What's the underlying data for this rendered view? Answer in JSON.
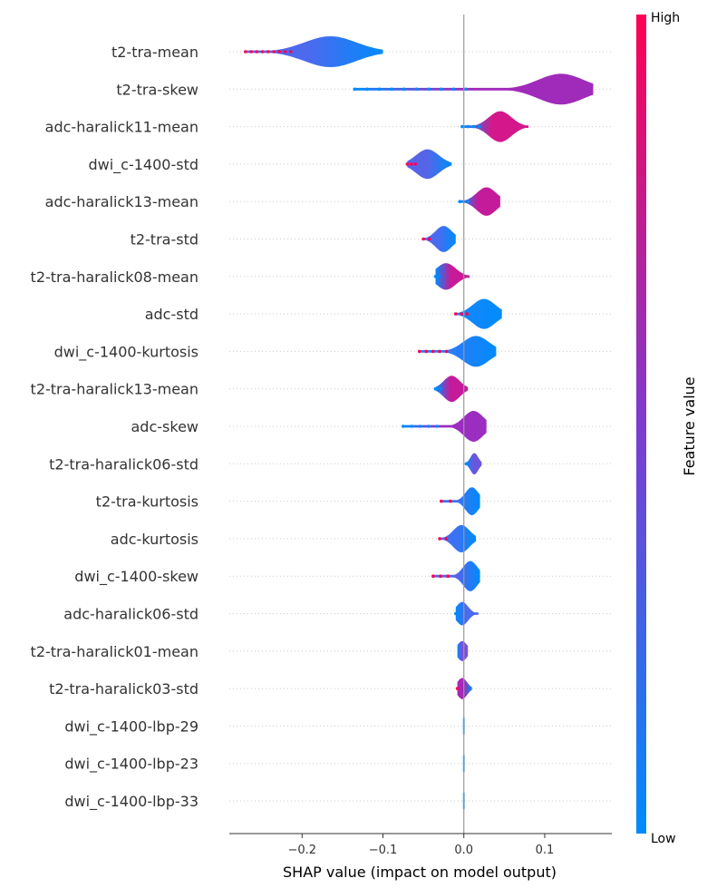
{
  "chart_data": {
    "type": "violin",
    "title": "",
    "xlabel": "SHAP value (impact on model output)",
    "ylabel": "",
    "xlim": [
      -0.29,
      0.183
    ],
    "xticks": [
      -0.2,
      -0.1,
      0.0,
      0.1
    ],
    "xtick_labels": [
      "−0.2",
      "−0.1",
      "0.0",
      "0.1"
    ],
    "colorbar": {
      "title": "Feature value",
      "high_label": "High",
      "low_label": "Low",
      "low_color": "#008bfb",
      "mid_color": "#7e3bcf",
      "high_color": "#ff0052"
    },
    "features": [
      {
        "name": "t2-tra-mean",
        "min": -0.27,
        "max": -0.1,
        "center": -0.165,
        "width": 0.08,
        "color": "#4d69ee",
        "low_end": "right"
      },
      {
        "name": "t2-tra-skew",
        "min": -0.135,
        "max": 0.16,
        "center": 0.12,
        "width": 0.07,
        "color": "#a02aba",
        "low_end": "left"
      },
      {
        "name": "adc-haralick11-mean",
        "min": -0.002,
        "max": 0.08,
        "center": 0.045,
        "width": 0.035,
        "color": "#d4188b",
        "low_end": "left"
      },
      {
        "name": "dwi_c-1400-std",
        "min": -0.07,
        "max": -0.015,
        "center": -0.045,
        "width": 0.035,
        "color": "#5665e8",
        "low_end": "right"
      },
      {
        "name": "adc-haralick13-mean",
        "min": -0.005,
        "max": 0.045,
        "center": 0.028,
        "width": 0.03,
        "color": "#c41b9a",
        "low_end": "left"
      },
      {
        "name": "t2-tra-std",
        "min": -0.05,
        "max": -0.01,
        "center": -0.025,
        "width": 0.025,
        "color": "#4a6bf0",
        "low_end": "right"
      },
      {
        "name": "t2-tra-haralick08-mean",
        "min": -0.035,
        "max": 0.007,
        "center": -0.022,
        "width": 0.03,
        "color": "#c81a96",
        "low_end": "left"
      },
      {
        "name": "adc-std",
        "min": -0.01,
        "max": 0.047,
        "center": 0.025,
        "width": 0.035,
        "color": "#0f88fb",
        "low_end": "right"
      },
      {
        "name": "dwi_c-1400-kurtosis",
        "min": -0.055,
        "max": 0.04,
        "center": 0.015,
        "width": 0.04,
        "color": "#2b7cf6",
        "low_end": "right"
      },
      {
        "name": "t2-tra-haralick13-mean",
        "min": -0.035,
        "max": 0.005,
        "center": -0.015,
        "width": 0.025,
        "color": "#c41b9a",
        "low_end": "left"
      },
      {
        "name": "adc-skew",
        "min": -0.075,
        "max": 0.028,
        "center": 0.012,
        "width": 0.03,
        "color": "#9b2dc0",
        "low_end": "left"
      },
      {
        "name": "t2-tra-haralick06-std",
        "min": 0.003,
        "max": 0.022,
        "center": 0.013,
        "width": 0.012,
        "color": "#6a57dd",
        "low_end": "left"
      },
      {
        "name": "t2-tra-kurtosis",
        "min": -0.028,
        "max": 0.02,
        "center": 0.01,
        "width": 0.02,
        "color": "#3a73f2",
        "low_end": "right"
      },
      {
        "name": "adc-kurtosis",
        "min": -0.03,
        "max": 0.015,
        "center": -0.003,
        "width": 0.025,
        "color": "#3d71f1",
        "low_end": "right"
      },
      {
        "name": "dwi_c-1400-skew",
        "min": -0.038,
        "max": 0.02,
        "center": 0.008,
        "width": 0.022,
        "color": "#5d5fe6",
        "low_end": "right"
      },
      {
        "name": "adc-haralick06-std",
        "min": -0.01,
        "max": 0.018,
        "center": -0.002,
        "width": 0.018,
        "color": "#4a6bf0",
        "low_end": "left"
      },
      {
        "name": "t2-tra-haralick01-mean",
        "min": -0.008,
        "max": 0.005,
        "center": -0.002,
        "width": 0.015,
        "color": "#7a4fd8",
        "low_end": "left"
      },
      {
        "name": "t2-tra-haralick03-std",
        "min": -0.008,
        "max": 0.01,
        "center": -0.002,
        "width": 0.015,
        "color": "#a528b6",
        "low_end": "right"
      },
      {
        "name": "dwi_c-1400-lbp-29",
        "min": -0.001,
        "max": 0.001,
        "center": 0.0,
        "width": 0.003,
        "color": "#008bfb",
        "low_end": "left"
      },
      {
        "name": "dwi_c-1400-lbp-23",
        "min": -0.001,
        "max": 0.001,
        "center": 0.0,
        "width": 0.003,
        "color": "#008bfb",
        "low_end": "left"
      },
      {
        "name": "dwi_c-1400-lbp-33",
        "min": -0.001,
        "max": 0.001,
        "center": 0.0,
        "width": 0.003,
        "color": "#008bfb",
        "low_end": "left"
      }
    ]
  }
}
